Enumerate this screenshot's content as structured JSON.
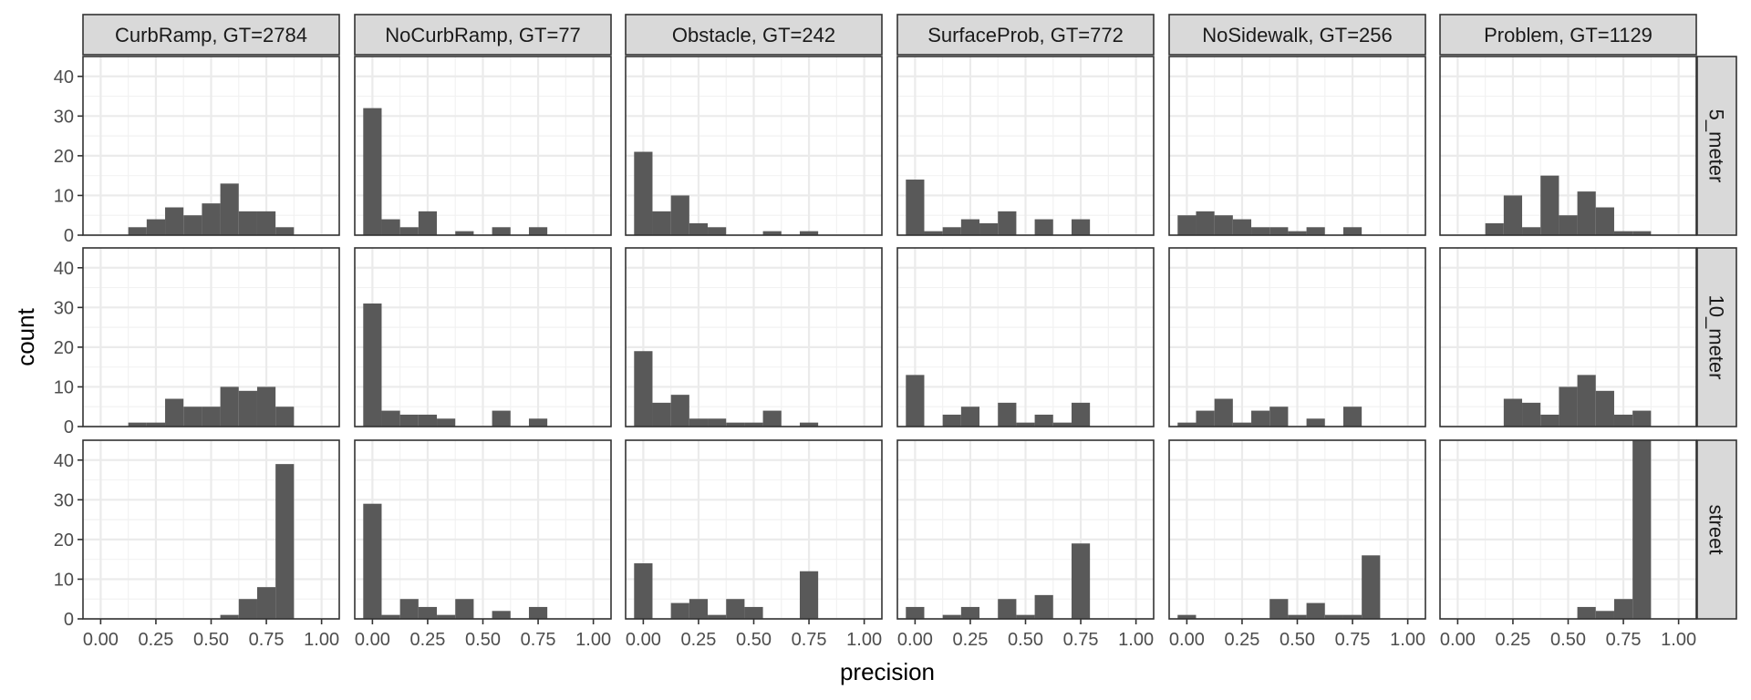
{
  "chart_data": {
    "type": "bar",
    "subtype": "faceted-histogram",
    "xlabel": "precision",
    "ylabel": "count",
    "xlim": [
      -0.08,
      1.08
    ],
    "ylim": [
      0,
      45
    ],
    "x_ticks": [
      0,
      0.25,
      0.5,
      0.75,
      1
    ],
    "x_tick_labels": [
      "0.00",
      "0.25",
      "0.50",
      "0.75",
      "1.00"
    ],
    "y_ticks": [
      0,
      10,
      20,
      30,
      40
    ],
    "y_tick_labels": [
      "0",
      "10",
      "20",
      "30",
      "40"
    ],
    "grid": true,
    "bar_color": "#595959",
    "bin_width": 0.0833,
    "bin_centers": [
      0,
      0.0833,
      0.1667,
      0.25,
      0.3333,
      0.4167,
      0.5,
      0.5833,
      0.6667,
      0.75,
      0.8333,
      0.9167,
      1
    ],
    "columns": [
      "CurbRamp, GT=2784",
      "NoCurbRamp, GT=77",
      "Obstacle, GT=242",
      "SurfaceProb, GT=772",
      "NoSidewalk, GT=256",
      "Problem, GT=1129"
    ],
    "rows": [
      "5_meter",
      "10_meter",
      "street"
    ],
    "counts": [
      [
        [
          0,
          0,
          2,
          4,
          7,
          5,
          8,
          13,
          6,
          6,
          2
        ],
        [
          32,
          4,
          2,
          6,
          0,
          1,
          0,
          2,
          0,
          2
        ],
        [
          21,
          6,
          10,
          3,
          2,
          0,
          0,
          1,
          0,
          1
        ],
        [
          14,
          1,
          2,
          4,
          3,
          6,
          0,
          4,
          0,
          4
        ],
        [
          5,
          6,
          5,
          4,
          2,
          2,
          1,
          2,
          0,
          2
        ],
        [
          0,
          0,
          3,
          10,
          2,
          15,
          5,
          11,
          7,
          1,
          1
        ]
      ],
      [
        [
          0,
          0,
          1,
          1,
          7,
          5,
          5,
          10,
          9,
          10,
          5
        ],
        [
          31,
          4,
          3,
          3,
          2,
          0,
          0,
          4,
          0,
          2
        ],
        [
          19,
          6,
          8,
          2,
          2,
          1,
          1,
          4,
          0,
          1
        ],
        [
          13,
          0,
          3,
          5,
          0,
          6,
          1,
          3,
          1,
          6
        ],
        [
          1,
          4,
          7,
          1,
          4,
          5,
          0,
          2,
          0,
          5
        ],
        [
          0,
          0,
          0,
          7,
          6,
          3,
          10,
          13,
          9,
          3,
          4
        ]
      ],
      [
        [
          0,
          0,
          0,
          0,
          0,
          0,
          0,
          1,
          5,
          8,
          39
        ],
        [
          29,
          1,
          5,
          3,
          1,
          5,
          0,
          2,
          0,
          3
        ],
        [
          14,
          0,
          4,
          5,
          1,
          5,
          3,
          0,
          0,
          12
        ],
        [
          3,
          0,
          1,
          3,
          0,
          5,
          1,
          6,
          0,
          19
        ],
        [
          1,
          0,
          0,
          0,
          0,
          5,
          1,
          4,
          1,
          1,
          16
        ],
        [
          0,
          0,
          0,
          0,
          0,
          0,
          0,
          3,
          2,
          5,
          45
        ]
      ]
    ],
    "bin_starts": [
      [
        0,
        0,
        0,
        0,
        0,
        0
      ],
      [
        0,
        0,
        0,
        0,
        0,
        0
      ],
      [
        0,
        0,
        0,
        0,
        0,
        0
      ]
    ]
  }
}
